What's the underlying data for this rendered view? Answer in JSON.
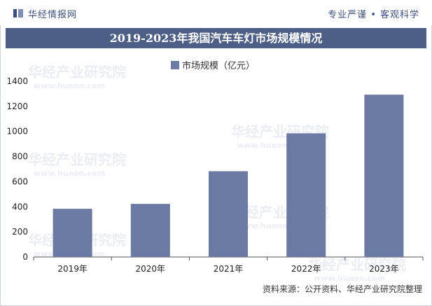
{
  "header": {
    "brand": "华经情报网",
    "slogan": "专业严谨 • 客观科学"
  },
  "footer": {
    "source": "资料来源：公开资料、华经产业研究院整理"
  },
  "watermark": {
    "name": "华经产业研究院",
    "url": "www.huaon.com"
  },
  "colors": {
    "bar": "#6a7aa3",
    "title_bg": "#4d5f87",
    "brand": "#3c4f7e"
  },
  "chart_data": {
    "type": "bar",
    "title": "2019-2023年我国汽车车灯市场规模情况",
    "categories": [
      "2019年",
      "2020年",
      "2021年",
      "2022年",
      "2023年"
    ],
    "series": [
      {
        "name": "市场规模（亿元）",
        "values": [
          384,
          423,
          683,
          985,
          1293
        ]
      }
    ],
    "ylim": [
      0,
      1400
    ],
    "yticks": [
      0,
      200,
      400,
      600,
      800,
      1000,
      1200,
      1400
    ],
    "xlabel": "",
    "ylabel": "",
    "legend": "top-center",
    "grid": false
  }
}
